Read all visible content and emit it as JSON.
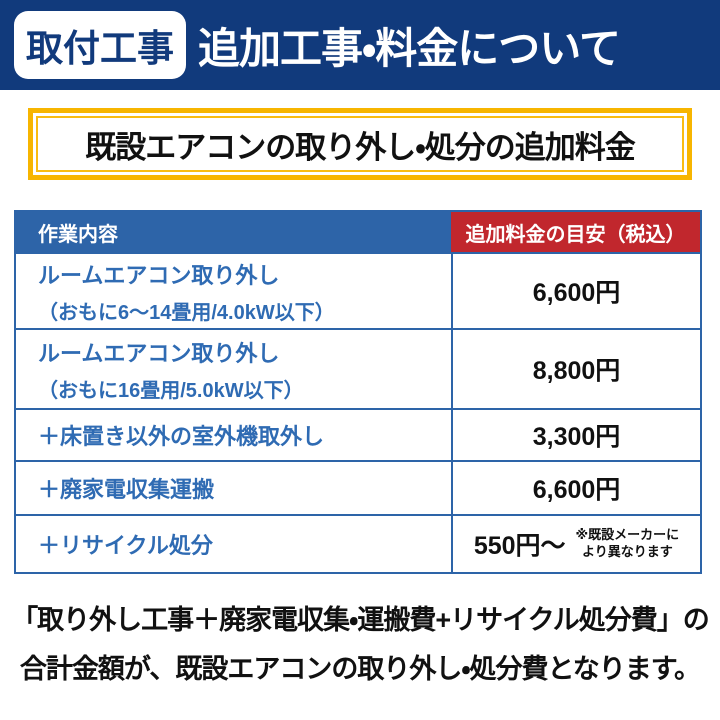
{
  "header": {
    "badge": "取付工事",
    "title": "追加工事・料金について"
  },
  "subtitle": "既設エアコンの取り外し・処分の追加料金",
  "table": {
    "columns": [
      "作業内容",
      "追加料金の目安（税込）"
    ],
    "rows": [
      {
        "work": "ルームエアコン取り外し",
        "detail": "（おもに6～14畳用/4.0kW以下）",
        "price": "6,600円"
      },
      {
        "work": "ルームエアコン取り外し",
        "detail": "（おもに16畳用/5.0kW以下）",
        "price": "8,800円"
      },
      {
        "work": "＋床置き以外の室外機取外し",
        "detail": "",
        "price": "3,300円"
      },
      {
        "work": "＋廃家電収集運搬",
        "detail": "",
        "price": "6,600円"
      },
      {
        "work": "＋リサイクル処分",
        "detail": "",
        "price": "550円～",
        "note_line1": "※既設メーカーに",
        "note_line2": "より異なります"
      }
    ]
  },
  "footer": {
    "line1": "「取り外し工事＋廃家電収集・運搬費+リサイクル処分費」の",
    "line2": "合計金額が、既設エアコンの取り外し・処分費となります。"
  },
  "colors": {
    "navy": "#113a7c",
    "table_blue": "#2d64a8",
    "table_red": "#c1272d",
    "accent_yellow": "#f7b500",
    "body_text_blue": "#2f6bb3"
  }
}
